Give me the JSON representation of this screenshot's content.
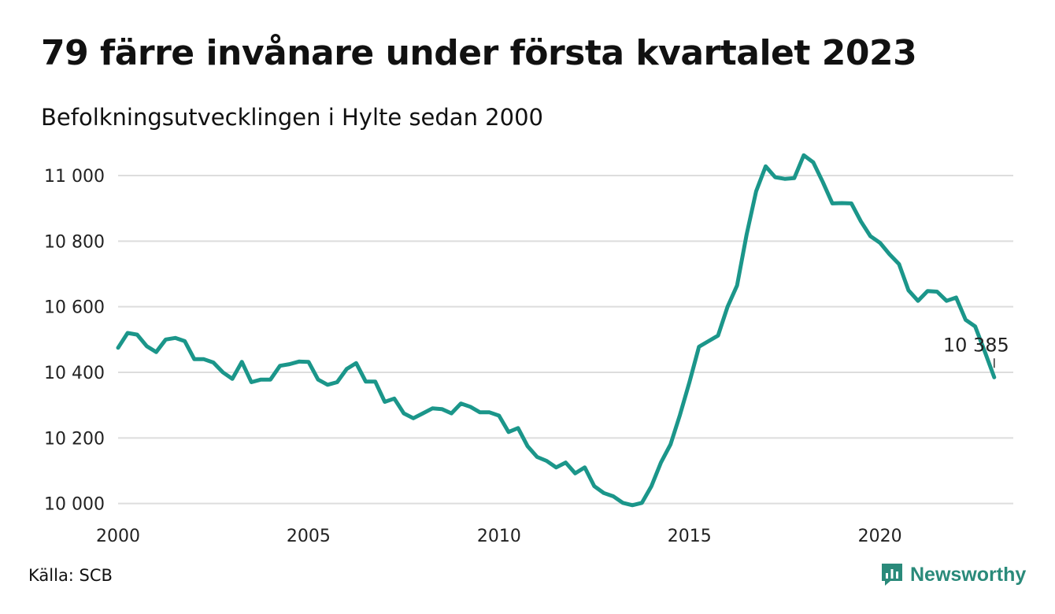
{
  "header": {
    "title": "79 färre invånare under första kvartalet 2023",
    "subtitle": "Befolkningsutvecklingen i Hylte sedan 2000"
  },
  "footer": {
    "source": "Källa: SCB",
    "brand": "Newsworthy",
    "brand_icon": "newsworthy-logo-icon"
  },
  "colors": {
    "line": "#1b968a",
    "grid": "#dddddd",
    "brand": "#2a8a7a"
  },
  "chart_data": {
    "type": "line",
    "title": "79 färre invånare under första kvartalet 2023",
    "subtitle": "Befolkningsutvecklingen i Hylte sedan 2000",
    "xlabel": "",
    "ylabel": "",
    "xlim": [
      2000,
      2023.5
    ],
    "ylim": [
      9980,
      11060
    ],
    "grid": true,
    "y_ticks": [
      10000,
      10200,
      10400,
      10600,
      10800,
      11000
    ],
    "y_tick_labels": [
      "10 000",
      "10 200",
      "10 400",
      "10 600",
      "10 800",
      "11 000"
    ],
    "x_ticks": [
      2000,
      2005,
      2010,
      2015,
      2020
    ],
    "x_tick_labels": [
      "2000",
      "2005",
      "2010",
      "2015",
      "2020"
    ],
    "annotation": {
      "text": "10 385",
      "x": 2023.0,
      "y": 10385
    },
    "series": [
      {
        "x": [
          2000.0,
          2000.25,
          2000.5,
          2000.75,
          2001.0,
          2001.25,
          2001.5,
          2001.75,
          2002.0,
          2002.25,
          2002.5,
          2002.75,
          2003.0,
          2003.25,
          2003.5,
          2003.75,
          2004.0,
          2004.25,
          2004.5,
          2004.75,
          2005.0,
          2005.25,
          2005.5,
          2005.75,
          2006.0,
          2006.25,
          2006.5,
          2006.75,
          2007.0,
          2007.25,
          2007.5,
          2007.75,
          2008.0,
          2008.25,
          2008.5,
          2008.75,
          2009.0,
          2009.25,
          2009.5,
          2009.75,
          2010.0,
          2010.25,
          2010.5,
          2010.75,
          2011.0,
          2011.25,
          2011.5,
          2011.75,
          2012.0,
          2012.25,
          2012.5,
          2012.75,
          2013.0,
          2013.25,
          2013.5,
          2013.75,
          2014.0,
          2014.25,
          2014.5,
          2014.75,
          2015.0,
          2015.25,
          2015.5,
          2015.75,
          2016.0,
          2016.25,
          2016.5,
          2016.75,
          2017.0,
          2017.25,
          2017.5,
          2017.75,
          2018.0,
          2018.25,
          2018.5,
          2018.75,
          2019.0,
          2019.25,
          2019.5,
          2019.75,
          2020.0,
          2020.25,
          2020.5,
          2020.75,
          2021.0,
          2021.25,
          2021.5,
          2021.75,
          2022.0,
          2022.25,
          2022.5,
          2022.75,
          2023.0
        ],
        "values": [
          10475,
          10520,
          10515,
          10480,
          10462,
          10500,
          10505,
          10495,
          10440,
          10440,
          10430,
          10400,
          10380,
          10432,
          10370,
          10378,
          10378,
          10420,
          10425,
          10433,
          10432,
          10378,
          10362,
          10370,
          10410,
          10428,
          10372,
          10372,
          10310,
          10320,
          10275,
          10260,
          10275,
          10290,
          10288,
          10275,
          10305,
          10295,
          10278,
          10278,
          10268,
          10218,
          10230,
          10175,
          10142,
          10130,
          10110,
          10125,
          10092,
          10110,
          10053,
          10032,
          10022,
          10002,
          9995,
          10002,
          10053,
          10125,
          10180,
          10270,
          10370,
          10478,
          10495,
          10512,
          10600,
          10665,
          10820,
          10952,
          11028,
          10995,
          10990,
          10992,
          11062,
          11040,
          10980,
          10915,
          10916,
          10915,
          10860,
          10815,
          10795,
          10760,
          10730,
          10650,
          10618,
          10648,
          10646,
          10618,
          10628,
          10560,
          10540,
          10464,
          10385
        ]
      }
    ]
  }
}
